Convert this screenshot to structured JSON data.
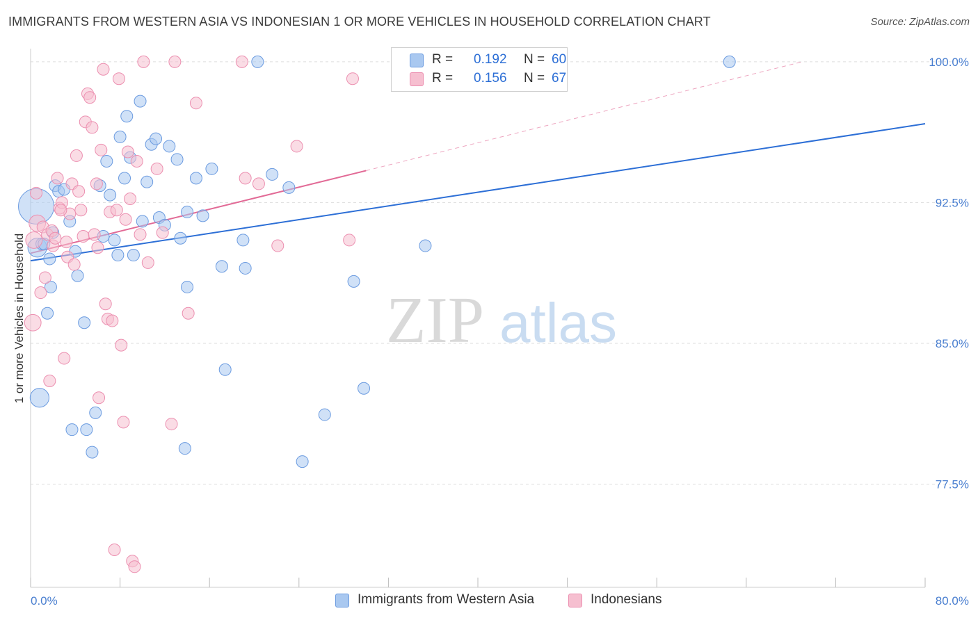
{
  "title": "IMMIGRANTS FROM WESTERN ASIA VS INDONESIAN 1 OR MORE VEHICLES IN HOUSEHOLD CORRELATION CHART",
  "source": "Source: ZipAtlas.com",
  "watermark": {
    "zip": "ZIP",
    "atlas": "atlas"
  },
  "colors": {
    "blue_fill": "#a9c8f0",
    "blue_stroke": "#6b9be0",
    "blue_line": "#2d6fd6",
    "pink_fill": "#f6bfd0",
    "pink_stroke": "#ec8fb0",
    "pink_line": "#e26a96",
    "grid": "#dddddd",
    "tick_text": "#4a7fd0"
  },
  "legend_top": {
    "rows": [
      {
        "r_label": "R =",
        "r_value": "0.192",
        "n_label": "N =",
        "n_value": "60",
        "series": "blue"
      },
      {
        "r_label": "R =",
        "r_value": "0.156",
        "n_label": "N =",
        "n_value": "67",
        "series": "pink"
      }
    ]
  },
  "legend_bottom": [
    {
      "label": "Immigrants from Western Asia",
      "series": "blue"
    },
    {
      "label": "Indonesians",
      "series": "pink"
    }
  ],
  "chart_data": {
    "type": "scatter",
    "title": "IMMIGRANTS FROM WESTERN ASIA VS INDONESIAN 1 OR MORE VEHICLES IN HOUSEHOLD CORRELATION CHART",
    "xlabel": "",
    "ylabel": "1 or more Vehicles in Household",
    "xlim": [
      0,
      80
    ],
    "ylim": [
      72,
      100.7
    ],
    "x_tick_labels": [
      "0.0%",
      "80.0%"
    ],
    "y_ticks": [
      77.5,
      85.0,
      92.5,
      100.0
    ],
    "y_tick_labels": [
      "77.5%",
      "85.0%",
      "92.5%",
      "100.0%"
    ],
    "grid": true,
    "series": [
      {
        "name": "Immigrants from Western Asia",
        "color": "blue",
        "trend": {
          "x": [
            0,
            80
          ],
          "y": [
            89.4,
            96.7
          ],
          "style": "solid"
        },
        "points": [
          [
            0.5,
            92.3,
            3
          ],
          [
            0.6,
            90.1,
            1.6
          ],
          [
            0.8,
            82.1,
            1.6
          ],
          [
            1.0,
            90.3,
            1
          ],
          [
            1.2,
            90.3,
            1
          ],
          [
            1.5,
            86.6,
            1
          ],
          [
            1.7,
            89.5,
            1
          ],
          [
            1.8,
            88.0,
            1
          ],
          [
            2.0,
            90.9,
            1
          ],
          [
            2.2,
            93.4,
            1
          ],
          [
            2.5,
            93.1,
            1
          ],
          [
            3.0,
            93.2,
            1
          ],
          [
            3.5,
            91.5,
            1
          ],
          [
            3.7,
            80.4,
            1
          ],
          [
            4.0,
            89.9,
            1
          ],
          [
            4.2,
            88.6,
            1
          ],
          [
            4.8,
            86.1,
            1
          ],
          [
            5.0,
            80.4,
            1
          ],
          [
            5.5,
            79.2,
            1
          ],
          [
            5.8,
            81.3,
            1
          ],
          [
            6.2,
            93.4,
            1
          ],
          [
            6.5,
            90.7,
            1
          ],
          [
            6.8,
            94.7,
            1
          ],
          [
            7.1,
            92.9,
            1
          ],
          [
            7.5,
            90.5,
            1
          ],
          [
            7.8,
            89.7,
            1
          ],
          [
            8.0,
            96.0,
            1
          ],
          [
            8.4,
            93.8,
            1
          ],
          [
            8.6,
            97.1,
            1
          ],
          [
            8.9,
            94.9,
            1
          ],
          [
            9.2,
            89.7,
            1
          ],
          [
            9.8,
            97.9,
            1
          ],
          [
            10.0,
            91.5,
            1
          ],
          [
            10.4,
            93.6,
            1
          ],
          [
            10.8,
            95.6,
            1
          ],
          [
            11.2,
            95.9,
            1
          ],
          [
            11.5,
            91.7,
            1
          ],
          [
            12.0,
            91.3,
            1
          ],
          [
            12.4,
            95.5,
            1
          ],
          [
            13.1,
            94.8,
            1
          ],
          [
            13.4,
            90.6,
            1
          ],
          [
            13.8,
            79.4,
            1
          ],
          [
            14.0,
            88.0,
            1
          ],
          [
            14.0,
            92.0,
            1
          ],
          [
            14.8,
            93.8,
            1
          ],
          [
            15.4,
            91.8,
            1
          ],
          [
            16.2,
            94.3,
            1
          ],
          [
            17.1,
            89.1,
            1
          ],
          [
            17.4,
            83.6,
            1
          ],
          [
            19.0,
            90.5,
            1
          ],
          [
            19.2,
            89.0,
            1
          ],
          [
            20.3,
            100.0,
            1
          ],
          [
            21.6,
            94.0,
            1
          ],
          [
            23.1,
            93.3,
            1
          ],
          [
            24.3,
            78.7,
            1
          ],
          [
            26.3,
            81.2,
            1
          ],
          [
            28.9,
            88.3,
            1
          ],
          [
            29.8,
            82.6,
            1
          ],
          [
            35.3,
            90.2,
            1
          ],
          [
            62.5,
            100.0,
            1
          ]
        ]
      },
      {
        "name": "Indonesians",
        "color": "pink",
        "trend": {
          "x": [
            0,
            30
          ],
          "y": [
            89.8,
            94.2
          ],
          "style": "solid",
          "extension": {
            "x": [
              30,
              69
            ],
            "y": [
              94.2,
              100.0
            ],
            "style": "dashed"
          }
        },
        "points": [
          [
            0.2,
            86.1,
            1.4
          ],
          [
            0.3,
            90.5,
            1.4
          ],
          [
            0.5,
            93.0,
            1
          ],
          [
            0.6,
            91.4,
            1.4
          ],
          [
            0.9,
            87.7,
            1
          ],
          [
            1.1,
            91.2,
            1
          ],
          [
            1.3,
            88.5,
            1
          ],
          [
            1.5,
            90.8,
            1
          ],
          [
            1.7,
            83.0,
            1
          ],
          [
            1.9,
            91.0,
            1
          ],
          [
            2.0,
            90.2,
            1
          ],
          [
            2.2,
            90.6,
            1
          ],
          [
            2.4,
            93.8,
            1
          ],
          [
            2.6,
            92.2,
            1
          ],
          [
            2.8,
            92.5,
            1
          ],
          [
            3.0,
            84.2,
            1
          ],
          [
            3.2,
            90.4,
            1
          ],
          [
            3.3,
            89.6,
            1
          ],
          [
            3.5,
            91.9,
            1
          ],
          [
            3.7,
            93.5,
            1
          ],
          [
            3.9,
            89.2,
            1
          ],
          [
            4.1,
            95.0,
            1
          ],
          [
            4.3,
            93.1,
            1
          ],
          [
            4.5,
            92.1,
            1
          ],
          [
            4.7,
            90.7,
            1
          ],
          [
            4.9,
            96.8,
            1
          ],
          [
            5.1,
            98.3,
            1
          ],
          [
            5.3,
            98.1,
            1
          ],
          [
            5.5,
            96.5,
            1
          ],
          [
            5.7,
            90.8,
            1
          ],
          [
            5.9,
            93.5,
            1
          ],
          [
            6.1,
            82.1,
            1
          ],
          [
            6.3,
            95.3,
            1
          ],
          [
            6.5,
            99.6,
            1
          ],
          [
            6.7,
            87.1,
            1
          ],
          [
            6.9,
            86.3,
            1
          ],
          [
            7.1,
            92.0,
            1
          ],
          [
            7.3,
            86.2,
            1
          ],
          [
            7.5,
            74.0,
            1
          ],
          [
            7.7,
            92.1,
            1
          ],
          [
            7.9,
            99.1,
            1
          ],
          [
            8.1,
            84.9,
            1
          ],
          [
            8.3,
            80.8,
            1
          ],
          [
            8.5,
            91.6,
            1
          ],
          [
            8.7,
            95.2,
            1
          ],
          [
            8.9,
            92.7,
            1
          ],
          [
            9.1,
            73.4,
            1
          ],
          [
            9.3,
            73.1,
            1
          ],
          [
            9.5,
            94.7,
            1
          ],
          [
            9.8,
            90.8,
            1
          ],
          [
            10.1,
            100.0,
            1
          ],
          [
            10.5,
            89.3,
            1
          ],
          [
            11.3,
            94.3,
            1
          ],
          [
            11.8,
            90.9,
            1
          ],
          [
            12.6,
            80.7,
            1
          ],
          [
            12.9,
            100.0,
            1
          ],
          [
            14.1,
            86.6,
            1
          ],
          [
            14.8,
            97.8,
            1
          ],
          [
            18.9,
            100.0,
            1
          ],
          [
            19.2,
            93.8,
            1
          ],
          [
            20.4,
            93.5,
            1
          ],
          [
            22.1,
            90.2,
            1
          ],
          [
            23.8,
            95.5,
            1
          ],
          [
            28.5,
            90.5,
            1
          ],
          [
            28.8,
            99.1,
            1
          ],
          [
            2.7,
            92.1,
            1
          ],
          [
            6.0,
            90.1,
            1
          ]
        ]
      }
    ]
  }
}
